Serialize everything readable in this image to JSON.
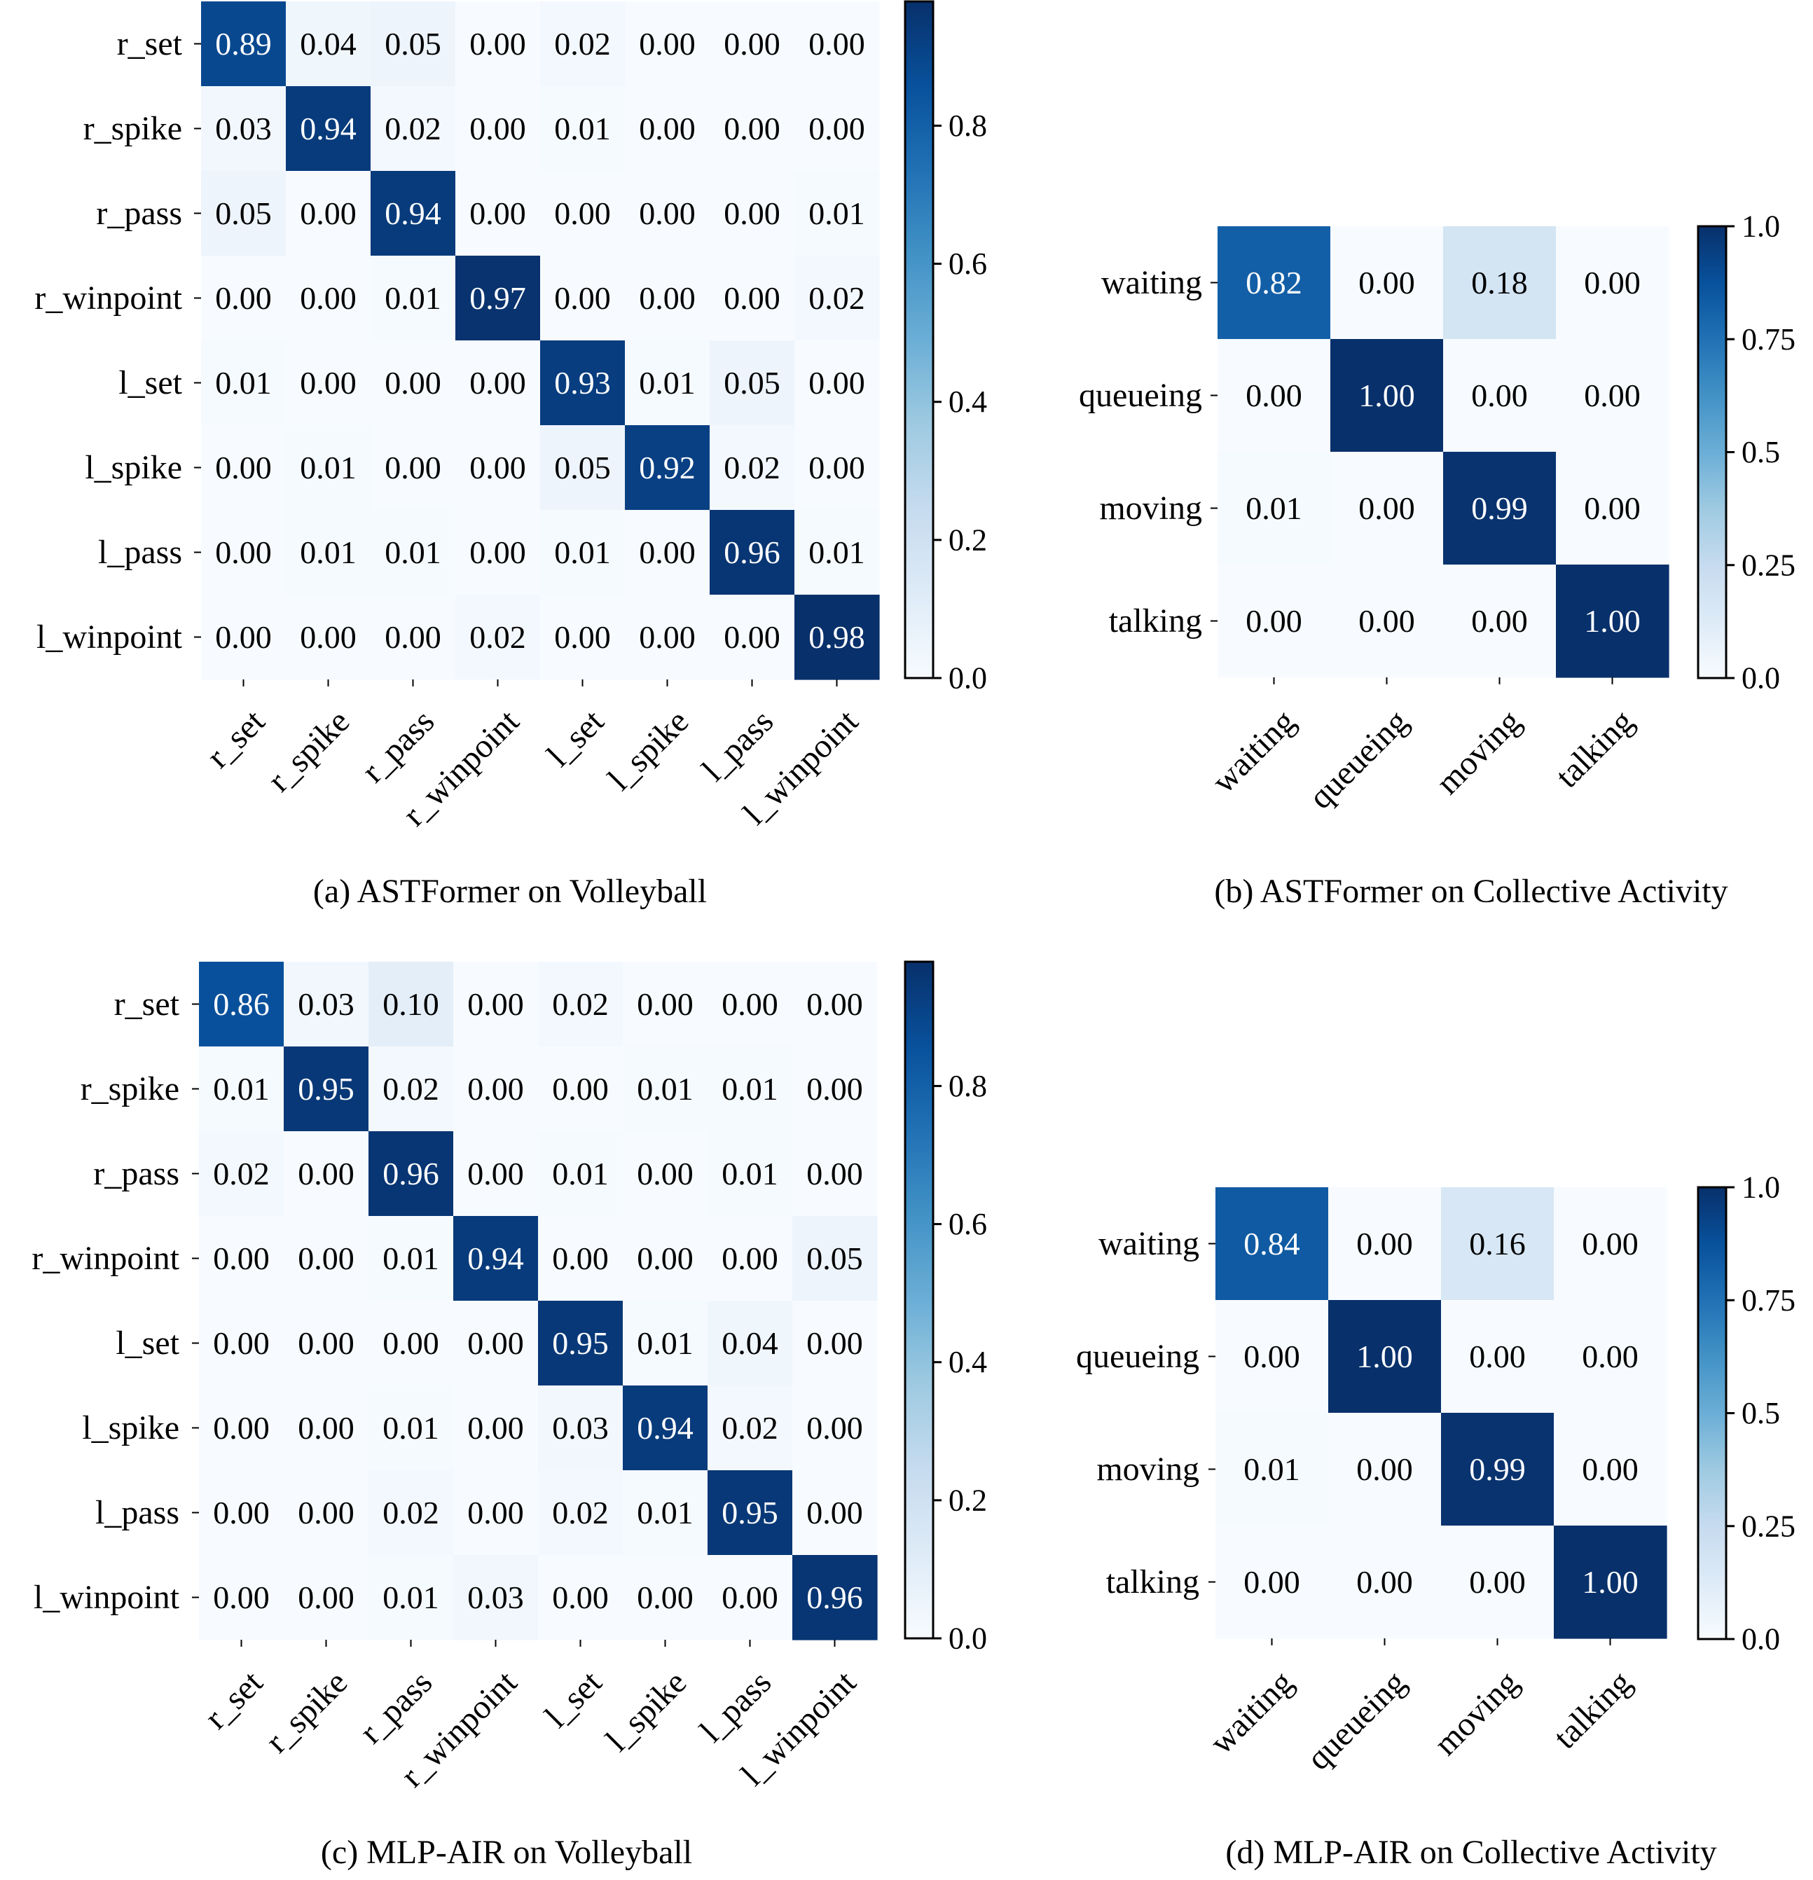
{
  "colormap": {
    "name": "Blues",
    "stops": [
      "#f7fbff",
      "#deebf7",
      "#c6dbef",
      "#9ecae1",
      "#6baed6",
      "#4292c6",
      "#2171b5",
      "#08519c",
      "#08306b"
    ]
  },
  "chart_data": [
    {
      "type": "heatmap",
      "id": "a",
      "caption": "(a) ASTFormer on Volleyball",
      "row_labels": [
        "r_set",
        "r_spike",
        "r_pass",
        "r_winpoint",
        "l_set",
        "l_spike",
        "l_pass",
        "l_winpoint"
      ],
      "col_labels": [
        "r_set",
        "r_spike",
        "r_pass",
        "r_winpoint",
        "l_set",
        "l_spike",
        "l_pass",
        "l_winpoint"
      ],
      "cell_labels": [
        [
          "0.89",
          "0.04",
          "0.05",
          "0.00",
          "0.02",
          "0.00",
          "0.00",
          "0.00"
        ],
        [
          "0.03",
          "0.94",
          "0.02",
          "0.00",
          "0.01",
          "0.00",
          "0.00",
          "0.00"
        ],
        [
          "0.05",
          "0.00",
          "0.94",
          "0.00",
          "0.00",
          "0.00",
          "0.00",
          "0.01"
        ],
        [
          "0.00",
          "0.00",
          "0.01",
          "0.97",
          "0.00",
          "0.00",
          "0.00",
          "0.02"
        ],
        [
          "0.01",
          "0.00",
          "0.00",
          "0.00",
          "0.93",
          "0.01",
          "0.05",
          "0.00"
        ],
        [
          "0.00",
          "0.01",
          "0.00",
          "0.00",
          "0.05",
          "0.92",
          "0.02",
          "0.00"
        ],
        [
          "0.00",
          "0.01",
          "0.01",
          "0.00",
          "0.01",
          "0.00",
          "0.96",
          "0.01"
        ],
        [
          "0.00",
          "0.00",
          "0.00",
          "0.02",
          "0.00",
          "0.00",
          "0.00",
          "0.98"
        ]
      ],
      "values": [
        [
          0.89,
          0.04,
          0.05,
          0.0,
          0.02,
          0.0,
          0.0,
          0.0
        ],
        [
          0.03,
          0.94,
          0.02,
          0.0,
          0.01,
          0.0,
          0.0,
          0.0
        ],
        [
          0.05,
          0.0,
          0.94,
          0.0,
          0.0,
          0.0,
          0.0,
          0.01
        ],
        [
          0.0,
          0.0,
          0.01,
          0.97,
          0.0,
          0.0,
          0.0,
          0.02
        ],
        [
          0.01,
          0.0,
          0.0,
          0.0,
          0.93,
          0.01,
          0.05,
          0.0
        ],
        [
          0.0,
          0.01,
          0.0,
          0.0,
          0.05,
          0.92,
          0.02,
          0.0
        ],
        [
          0.0,
          0.01,
          0.01,
          0.0,
          0.01,
          0.0,
          0.96,
          0.01
        ],
        [
          0.0,
          0.0,
          0.0,
          0.02,
          0.0,
          0.0,
          0.0,
          0.98
        ]
      ],
      "vmin": 0.0,
      "vmax": 0.98,
      "colorbar_ticks": [
        0.0,
        0.2,
        0.4,
        0.6,
        0.8
      ],
      "colorbar_tick_labels": [
        "0.0",
        "0.2",
        "0.4",
        "0.6",
        "0.8"
      ],
      "colorbar_ticks_fraction": [
        0.0,
        0.2,
        0.4,
        0.6,
        0.8
      ],
      "xtick_rotation_deg": -45
    },
    {
      "type": "heatmap",
      "id": "b",
      "caption": "(b) ASTFormer on Collective Activity",
      "row_labels": [
        "waiting",
        "queueing",
        "moving",
        "talking"
      ],
      "col_labels": [
        "waiting",
        "queueing",
        "moving",
        "talking"
      ],
      "cell_labels": [
        [
          "0.82",
          "0.00",
          "0.18",
          "0.00"
        ],
        [
          "0.00",
          "1.00",
          "0.00",
          "0.00"
        ],
        [
          "0.01",
          "0.00",
          "0.99",
          "0.00"
        ],
        [
          "0.00",
          "0.00",
          "0.00",
          "1.00"
        ]
      ],
      "values": [
        [
          0.82,
          0.0,
          0.18,
          0.0
        ],
        [
          0.0,
          1.0,
          0.0,
          0.0
        ],
        [
          0.01,
          0.0,
          0.99,
          0.0
        ],
        [
          0.0,
          0.0,
          0.0,
          1.0
        ]
      ],
      "vmin": 0.0,
      "vmax": 1.0,
      "colorbar_ticks": [
        0.0,
        0.25,
        0.5,
        0.75,
        1.0
      ],
      "colorbar_tick_labels": [
        "0.0",
        "0.25",
        "0.5",
        "0.75",
        "1.0"
      ],
      "xtick_rotation_deg": -45
    },
    {
      "type": "heatmap",
      "id": "c",
      "caption": "(c) MLP-AIR on Volleyball",
      "row_labels": [
        "r_set",
        "r_spike",
        "r_pass",
        "r_winpoint",
        "l_set",
        "l_spike",
        "l_pass",
        "l_winpoint"
      ],
      "col_labels": [
        "r_set",
        "r_spike",
        "r_pass",
        "r_winpoint",
        "l_set",
        "l_spike",
        "l_pass",
        "l_winpoint"
      ],
      "cell_labels": [
        [
          "0.86",
          "0.03",
          "0.10",
          "0.00",
          "0.02",
          "0.00",
          "0.00",
          "0.00"
        ],
        [
          "0.01",
          "0.95",
          "0.02",
          "0.00",
          "0.00",
          "0.01",
          "0.01",
          "0.00"
        ],
        [
          "0.02",
          "0.00",
          "0.96",
          "0.00",
          "0.01",
          "0.00",
          "0.01",
          "0.00"
        ],
        [
          "0.00",
          "0.00",
          "0.01",
          "0.94",
          "0.00",
          "0.00",
          "0.00",
          "0.05"
        ],
        [
          "0.00",
          "0.00",
          "0.00",
          "0.00",
          "0.95",
          "0.01",
          "0.04",
          "0.00"
        ],
        [
          "0.00",
          "0.00",
          "0.01",
          "0.00",
          "0.03",
          "0.94",
          "0.02",
          "0.00"
        ],
        [
          "0.00",
          "0.00",
          "0.02",
          "0.00",
          "0.02",
          "0.01",
          "0.95",
          "0.00"
        ],
        [
          "0.00",
          "0.00",
          "0.01",
          "0.03",
          "0.00",
          "0.00",
          "0.00",
          "0.96"
        ]
      ],
      "values": [
        [
          0.86,
          0.03,
          0.1,
          0.0,
          0.02,
          0.0,
          0.0,
          0.0
        ],
        [
          0.01,
          0.95,
          0.02,
          0.0,
          0.0,
          0.01,
          0.01,
          0.0
        ],
        [
          0.02,
          0.0,
          0.96,
          0.0,
          0.01,
          0.0,
          0.01,
          0.0
        ],
        [
          0.0,
          0.0,
          0.01,
          0.94,
          0.0,
          0.0,
          0.0,
          0.05
        ],
        [
          0.0,
          0.0,
          0.0,
          0.0,
          0.95,
          0.01,
          0.04,
          0.0
        ],
        [
          0.0,
          0.0,
          0.01,
          0.0,
          0.03,
          0.94,
          0.02,
          0.0
        ],
        [
          0.0,
          0.0,
          0.02,
          0.0,
          0.02,
          0.01,
          0.95,
          0.0
        ],
        [
          0.0,
          0.0,
          0.01,
          0.03,
          0.0,
          0.0,
          0.0,
          0.96
        ]
      ],
      "vmin": 0.0,
      "vmax": 0.98,
      "colorbar_ticks": [
        0.0,
        0.2,
        0.4,
        0.6,
        0.8
      ],
      "colorbar_tick_labels": [
        "0.0",
        "0.2",
        "0.4",
        "0.6",
        "0.8"
      ],
      "colorbar_ticks_fraction": [
        0.0,
        0.2,
        0.4,
        0.6,
        0.8
      ],
      "xtick_rotation_deg": -45
    },
    {
      "type": "heatmap",
      "id": "d",
      "caption": "(d) MLP-AIR on Collective Activity",
      "row_labels": [
        "waiting",
        "queueing",
        "moving",
        "talking"
      ],
      "col_labels": [
        "waiting",
        "queueing",
        "moving",
        "talking"
      ],
      "cell_labels": [
        [
          "0.84",
          "0.00",
          "0.16",
          "0.00"
        ],
        [
          "0.00",
          "1.00",
          "0.00",
          "0.00"
        ],
        [
          "0.01",
          "0.00",
          "0.99",
          "0.00"
        ],
        [
          "0.00",
          "0.00",
          "0.00",
          "1.00"
        ]
      ],
      "values": [
        [
          0.84,
          0.0,
          0.16,
          0.0
        ],
        [
          0.0,
          1.0,
          0.0,
          0.0
        ],
        [
          0.01,
          0.0,
          0.99,
          0.0
        ],
        [
          0.0,
          0.0,
          0.0,
          1.0
        ]
      ],
      "vmin": 0.0,
      "vmax": 1.0,
      "colorbar_ticks": [
        0.0,
        0.25,
        0.5,
        0.75,
        1.0
      ],
      "colorbar_tick_labels": [
        "0.0",
        "0.25",
        "0.5",
        "0.75",
        "1.0"
      ],
      "xtick_rotation_deg": -45
    }
  ]
}
